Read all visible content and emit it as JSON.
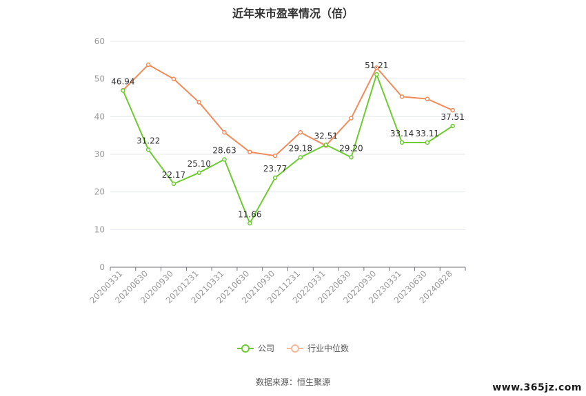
{
  "chart_data": {
    "type": "line",
    "title": "近年来市盈率情况（倍）",
    "categories": [
      "20200331",
      "20200630",
      "20200930",
      "20201231",
      "20210331",
      "20210630",
      "20210930",
      "20211231",
      "20220331",
      "20220630",
      "20220930",
      "20230331",
      "20230630",
      "20240828"
    ],
    "series": [
      {
        "name": "公司",
        "color": "#6ccb2f",
        "values": [
          46.94,
          31.22,
          22.17,
          25.1,
          28.63,
          11.66,
          23.77,
          29.18,
          32.51,
          29.2,
          51.21,
          33.14,
          33.11,
          37.51
        ],
        "labels": [
          "46.94",
          "31.22",
          "22.17",
          "25.10",
          "28.63",
          "11.66",
          "23.77",
          "29.18",
          "32.51",
          "29.20",
          "51.21",
          "33.14",
          "33.11",
          "37.51"
        ]
      },
      {
        "name": "行业中位数",
        "color": "#f28b5a",
        "values": [
          47.0,
          53.8,
          50.0,
          43.8,
          35.8,
          30.6,
          29.6,
          35.8,
          32.3,
          39.6,
          53.0,
          45.3,
          44.7,
          41.7
        ]
      }
    ],
    "ylim": [
      0,
      60
    ],
    "yticks": [
      0,
      10,
      20,
      30,
      40,
      50,
      60
    ],
    "grid": true,
    "legend": "bottom"
  },
  "source_text": "数据来源：恒生聚源",
  "watermark": "www.365jz.com"
}
